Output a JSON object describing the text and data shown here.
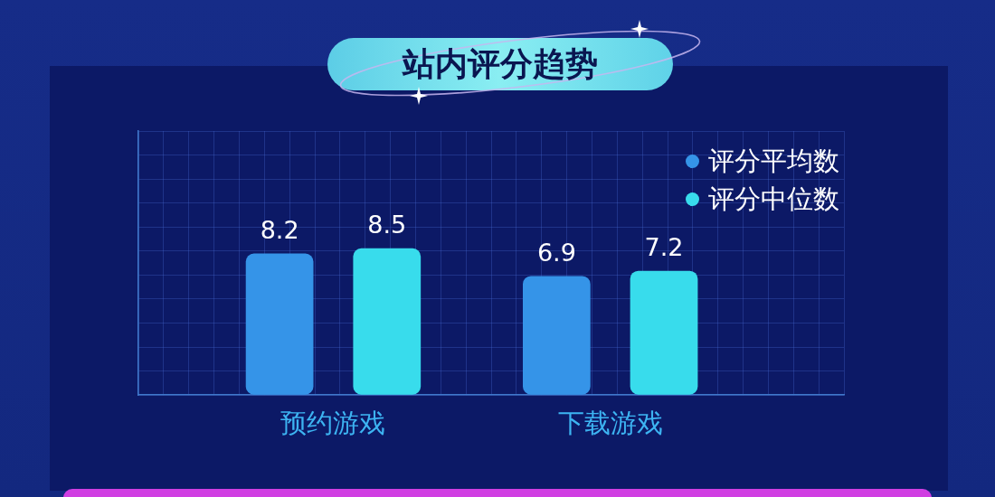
{
  "chart_data": {
    "type": "bar",
    "title": "站内评分趋势",
    "categories": [
      "预约游戏",
      "下载游戏"
    ],
    "series": [
      {
        "name": "评分平均数",
        "color": "#3594e8",
        "values": [
          8.2,
          6.9
        ]
      },
      {
        "name": "评分中位数",
        "color": "#38dcec",
        "values": [
          8.5,
          7.2
        ]
      }
    ],
    "data_labels": true,
    "legend": "top right",
    "grid": true,
    "tick_labels": "x"
  }
}
